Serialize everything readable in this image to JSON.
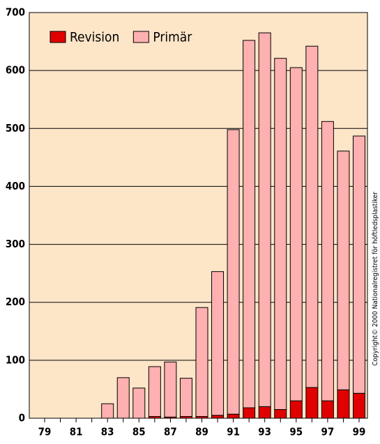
{
  "chart_data": {
    "type": "stacked_bar",
    "categories": [
      "79",
      null,
      "81",
      null,
      "83",
      null,
      "85",
      null,
      "87",
      null,
      "89",
      null,
      "91",
      null,
      "93",
      null,
      "95",
      null,
      "97",
      null,
      "99"
    ],
    "series": [
      {
        "name": "Revision",
        "color": "#e00000",
        "values": [
          0,
          0,
          0,
          0,
          0,
          0,
          0,
          3,
          2,
          3,
          3,
          5,
          7,
          18,
          20,
          15,
          30,
          53,
          30,
          49,
          43
        ]
      },
      {
        "name": "Primär",
        "color": "#ffb0b0",
        "values": [
          0,
          0,
          0,
          0,
          25,
          70,
          52,
          86,
          95,
          66,
          188,
          248,
          491,
          634,
          645,
          606,
          575,
          589,
          482,
          412,
          444
        ]
      }
    ],
    "ylim": [
      0,
      700
    ],
    "yticks": [
      0,
      100,
      200,
      300,
      400,
      500,
      600,
      700
    ],
    "grid": true,
    "legend": "top-left",
    "background": "#fde5c8",
    "annotation": "Copyright© 2000 Nationalregistret för höftledsplastiker"
  }
}
